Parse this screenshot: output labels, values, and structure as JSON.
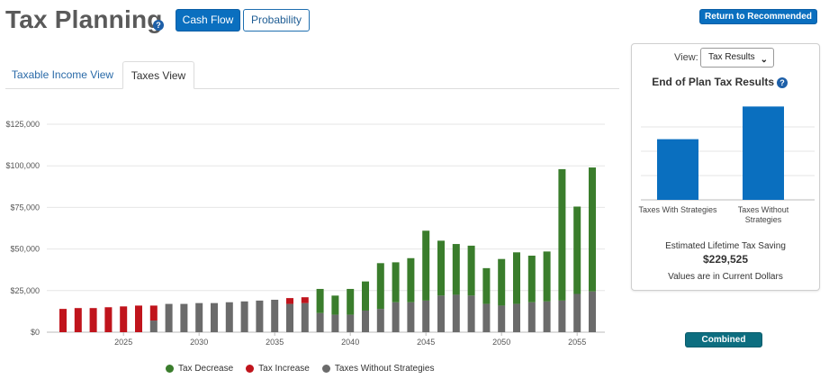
{
  "header": {
    "title": "Tax Planning",
    "help_glyph": "?",
    "cash_flow_label": "Cash Flow",
    "probability_label": "Probability",
    "return_label": "Return to Recommended",
    "return_icon_glyph": "⤴"
  },
  "tabs": [
    {
      "label": "Taxable Income View",
      "active": false
    },
    {
      "label": "Taxes View",
      "active": true
    }
  ],
  "legend": [
    {
      "label": "Tax Decrease",
      "color": "#3a7d2c"
    },
    {
      "label": "Tax Increase",
      "color": "#c0141c"
    },
    {
      "label": "Taxes Without Strategies",
      "color": "#6b6b6b"
    }
  ],
  "chart_data": {
    "type": "bar",
    "stacked": true,
    "x": [
      2021,
      2022,
      2023,
      2024,
      2025,
      2026,
      2027,
      2028,
      2029,
      2030,
      2031,
      2032,
      2033,
      2034,
      2035,
      2036,
      2037,
      2038,
      2039,
      2040,
      2041,
      2042,
      2043,
      2044,
      2045,
      2046,
      2047,
      2048,
      2049,
      2050,
      2051,
      2052,
      2053,
      2054,
      2055,
      2056
    ],
    "series": [
      {
        "name": "Taxes Without Strategies",
        "color": "#6b6b6b",
        "values": [
          0,
          0,
          0,
          0,
          0,
          0,
          7000,
          17000,
          17000,
          17500,
          17500,
          18000,
          18500,
          19000,
          19500,
          17000,
          17500,
          11500,
          10500,
          10500,
          13000,
          14000,
          18000,
          18000,
          19000,
          22000,
          22500,
          22000,
          17000,
          16000,
          17000,
          18000,
          18500,
          19000,
          23000,
          24500
        ]
      },
      {
        "name": "Tax Increase",
        "color": "#c0141c",
        "values": [
          14000,
          14500,
          14500,
          15000,
          15500,
          16000,
          9000,
          0,
          0,
          0,
          0,
          0,
          0,
          0,
          0,
          3500,
          3500,
          0,
          0,
          0,
          0,
          0,
          0,
          0,
          0,
          0,
          0,
          0,
          0,
          0,
          0,
          0,
          0,
          0,
          0,
          0
        ]
      },
      {
        "name": "Tax Decrease",
        "color": "#3a7d2c",
        "values": [
          0,
          0,
          0,
          0,
          0,
          0,
          0,
          0,
          0,
          0,
          0,
          0,
          0,
          0,
          0,
          0,
          0,
          14500,
          11500,
          15500,
          17500,
          27500,
          24000,
          26500,
          42000,
          33000,
          30500,
          30000,
          21500,
          28000,
          31000,
          28000,
          30000,
          79000,
          52500,
          74500
        ]
      }
    ],
    "ylim": [
      0,
      125000
    ],
    "yticks": [
      0,
      25000,
      50000,
      75000,
      100000,
      125000
    ],
    "ytick_labels": [
      "$0",
      "$25,000",
      "$50,000",
      "$75,000",
      "$100,000",
      "$125,000"
    ],
    "xticks": [
      2025,
      2030,
      2035,
      2040,
      2045,
      2050,
      2055
    ],
    "grid": true
  },
  "side_panel": {
    "view_label": "View:",
    "view_value": "Tax Results",
    "title": "End of Plan Tax Results",
    "bars": [
      {
        "label": "Taxes With Strategies",
        "value": 0.52,
        "color": "#0a6fbf"
      },
      {
        "label": "Taxes Without Strategies",
        "value": 0.8,
        "color": "#0a6fbf"
      }
    ],
    "saving_label": "Estimated Lifetime Tax Saving",
    "saving_value": "$229,525",
    "note": "Values are in Current Dollars"
  },
  "combined_details_label": "Combined Details"
}
